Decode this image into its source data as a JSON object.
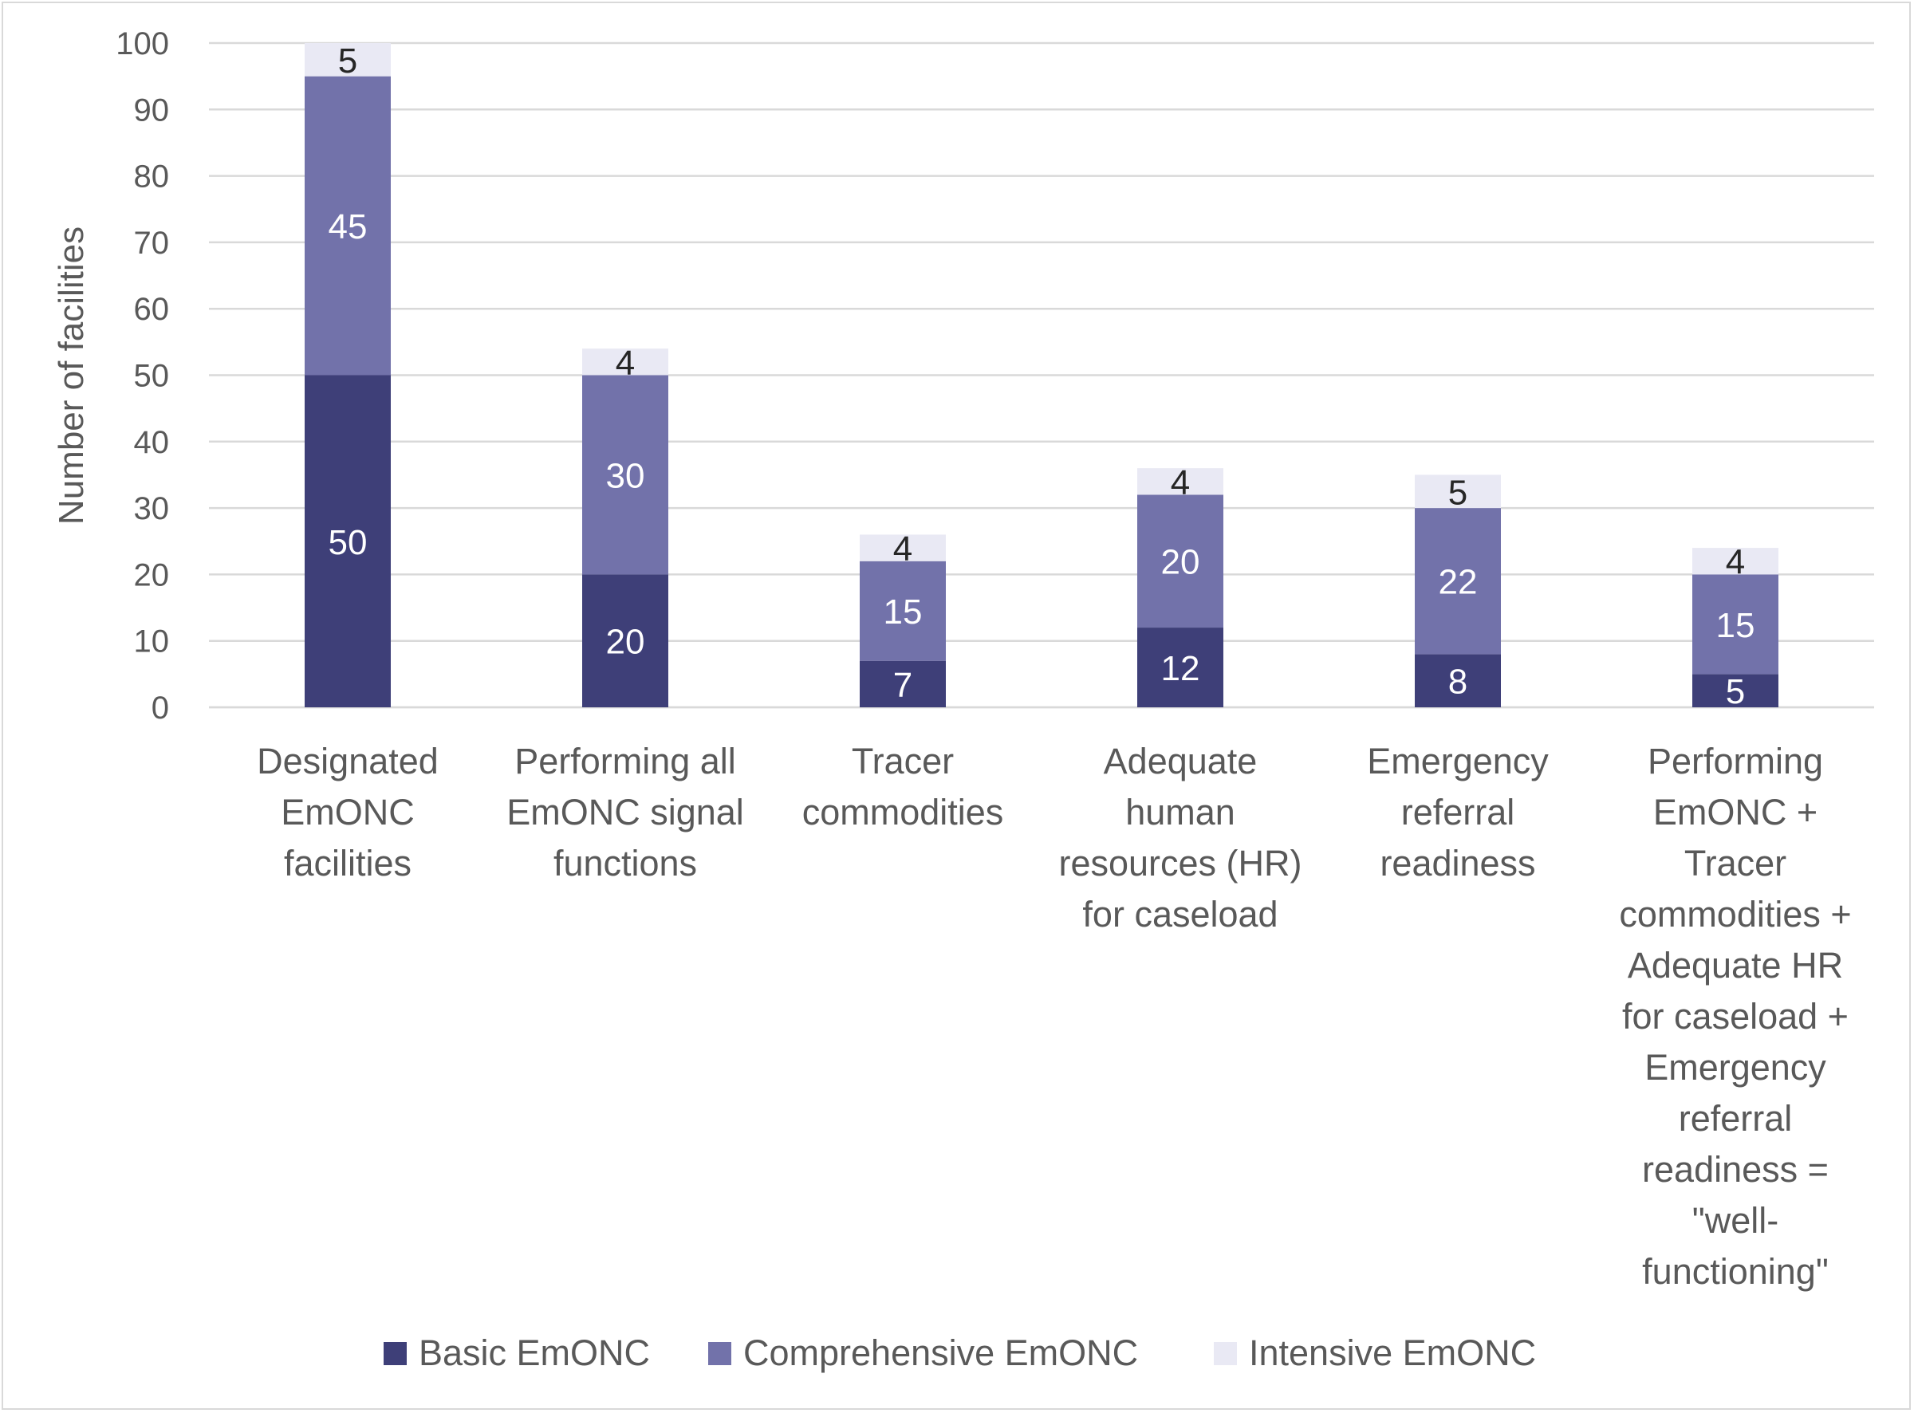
{
  "chart_data": {
    "type": "bar",
    "stacked": true,
    "categories": [
      [
        "Designated",
        "EmONC",
        "facilities"
      ],
      [
        "Performing all",
        "EmONC signal",
        "functions"
      ],
      [
        "Tracer",
        "commodities"
      ],
      [
        "Adequate",
        "human",
        "resources (HR)",
        "for caseload"
      ],
      [
        "Emergency",
        "referral",
        "readiness"
      ],
      [
        "Performing",
        "EmONC +",
        "Tracer",
        "commodities +",
        "Adequate HR",
        "for caseload +",
        "Emergency",
        "referral",
        "readiness =",
        "\"well-",
        "functioning\""
      ]
    ],
    "series": [
      {
        "name": "Basic EmONC",
        "color": "#3e3f78",
        "label_color": "#ffffff",
        "values": [
          50,
          20,
          7,
          12,
          8,
          5
        ]
      },
      {
        "name": "Comprehensive EmONC",
        "color": "#7272aa",
        "label_color": "#ffffff",
        "values": [
          45,
          30,
          15,
          20,
          22,
          15
        ]
      },
      {
        "name": "Intensive EmONC",
        "color": "#e9e9f4",
        "label_color": "#262626",
        "values": [
          5,
          4,
          4,
          4,
          5,
          4
        ]
      }
    ],
    "ylabel": "Number of facilities",
    "ylim": [
      0,
      100
    ],
    "yticks": [
      0,
      10,
      20,
      30,
      40,
      50,
      60,
      70,
      80,
      90,
      100
    ],
    "grid": true,
    "legend": "bottom"
  }
}
